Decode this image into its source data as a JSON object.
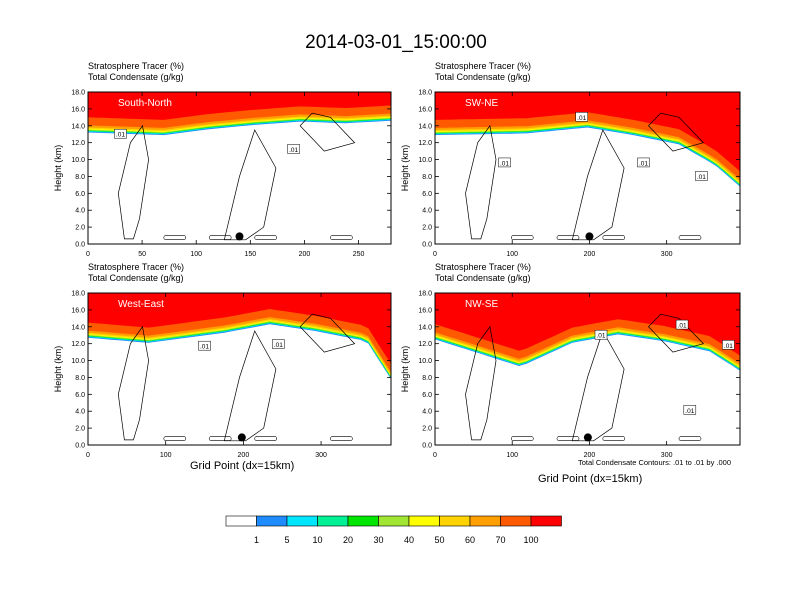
{
  "title": "2014-03-01_15:00:00",
  "labels": {
    "tracer": "Stratosphere Tracer   (%)",
    "condensate": "Total Condensate   (g/kg)",
    "ylabel": "Height (km)",
    "xlabel": "Grid Point (dx=15km)",
    "contour_note": "Total Condensate Contours: .01 to .01 by .000"
  },
  "colors": {
    "levels": [
      "#ffffff",
      "#1e8cff",
      "#00e6ff",
      "#00f096",
      "#00e600",
      "#a0e632",
      "#ffff00",
      "#ffd200",
      "#ffa000",
      "#ff5a00",
      "#ff0000"
    ],
    "colorbar_labels": [
      "1",
      "5",
      "10",
      "20",
      "30",
      "40",
      "50",
      "60",
      "70",
      "100"
    ]
  },
  "chart_data": [
    {
      "type": "heatmap",
      "panel_label": "South-North",
      "xlim": [
        0,
        280
      ],
      "xticks": [
        "0",
        "50",
        "100",
        "150",
        "200",
        "250"
      ],
      "ylim": [
        0,
        18
      ],
      "yticks": [
        "0.0",
        "2.0",
        "4.0",
        "6.0",
        "8.0",
        "10.0",
        "12.0",
        "14.0",
        "16.0",
        "18.0"
      ],
      "marker_x": 140,
      "contour_labels": [
        {
          "x": 30,
          "y": 13.0,
          "text": ".01"
        },
        {
          "x": 190,
          "y": 11.2,
          "text": ".01"
        }
      ]
    },
    {
      "type": "heatmap",
      "panel_label": "SW-NE",
      "xlim": [
        0,
        395
      ],
      "xticks": [
        "0",
        "100",
        "200",
        "300"
      ],
      "ylim": [
        0,
        18
      ],
      "yticks": [
        "0.0",
        "2.0",
        "4.0",
        "6.0",
        "8.0",
        "10.0",
        "12.0",
        "14.0",
        "16.0",
        "18.0"
      ],
      "marker_x": 200,
      "contour_labels": [
        {
          "x": 190,
          "y": 15.0,
          "text": ".01"
        },
        {
          "x": 90,
          "y": 9.6,
          "text": ".01"
        },
        {
          "x": 270,
          "y": 9.6,
          "text": ".01"
        },
        {
          "x": 345,
          "y": 8.0,
          "text": ".01"
        }
      ]
    },
    {
      "type": "heatmap",
      "panel_label": "West-East",
      "xlim": [
        0,
        390
      ],
      "xticks": [
        "0",
        "100",
        "200",
        "300"
      ],
      "ylim": [
        0,
        18
      ],
      "yticks": [
        "0.0",
        "2.0",
        "4.0",
        "6.0",
        "8.0",
        "10.0",
        "12.0",
        "14.0",
        "16.0",
        "18.0"
      ],
      "marker_x": 198,
      "contour_labels": [
        {
          "x": 150,
          "y": 11.7,
          "text": ".01"
        },
        {
          "x": 245,
          "y": 11.9,
          "text": ".01"
        }
      ]
    },
    {
      "type": "heatmap",
      "panel_label": "NW-SE",
      "xlim": [
        0,
        395
      ],
      "xticks": [
        "0",
        "100",
        "200",
        "300"
      ],
      "ylim": [
        0,
        18
      ],
      "yticks": [
        "0.0",
        "2.0",
        "4.0",
        "6.0",
        "8.0",
        "10.0",
        "12.0",
        "14.0",
        "16.0",
        "18.0"
      ],
      "marker_x": 198,
      "contour_labels": [
        {
          "x": 215,
          "y": 13.0,
          "text": ".01"
        },
        {
          "x": 320,
          "y": 14.2,
          "text": ".01"
        },
        {
          "x": 380,
          "y": 11.8,
          "text": ".01"
        },
        {
          "x": 330,
          "y": 4.1,
          "text": ".01"
        }
      ]
    }
  ]
}
